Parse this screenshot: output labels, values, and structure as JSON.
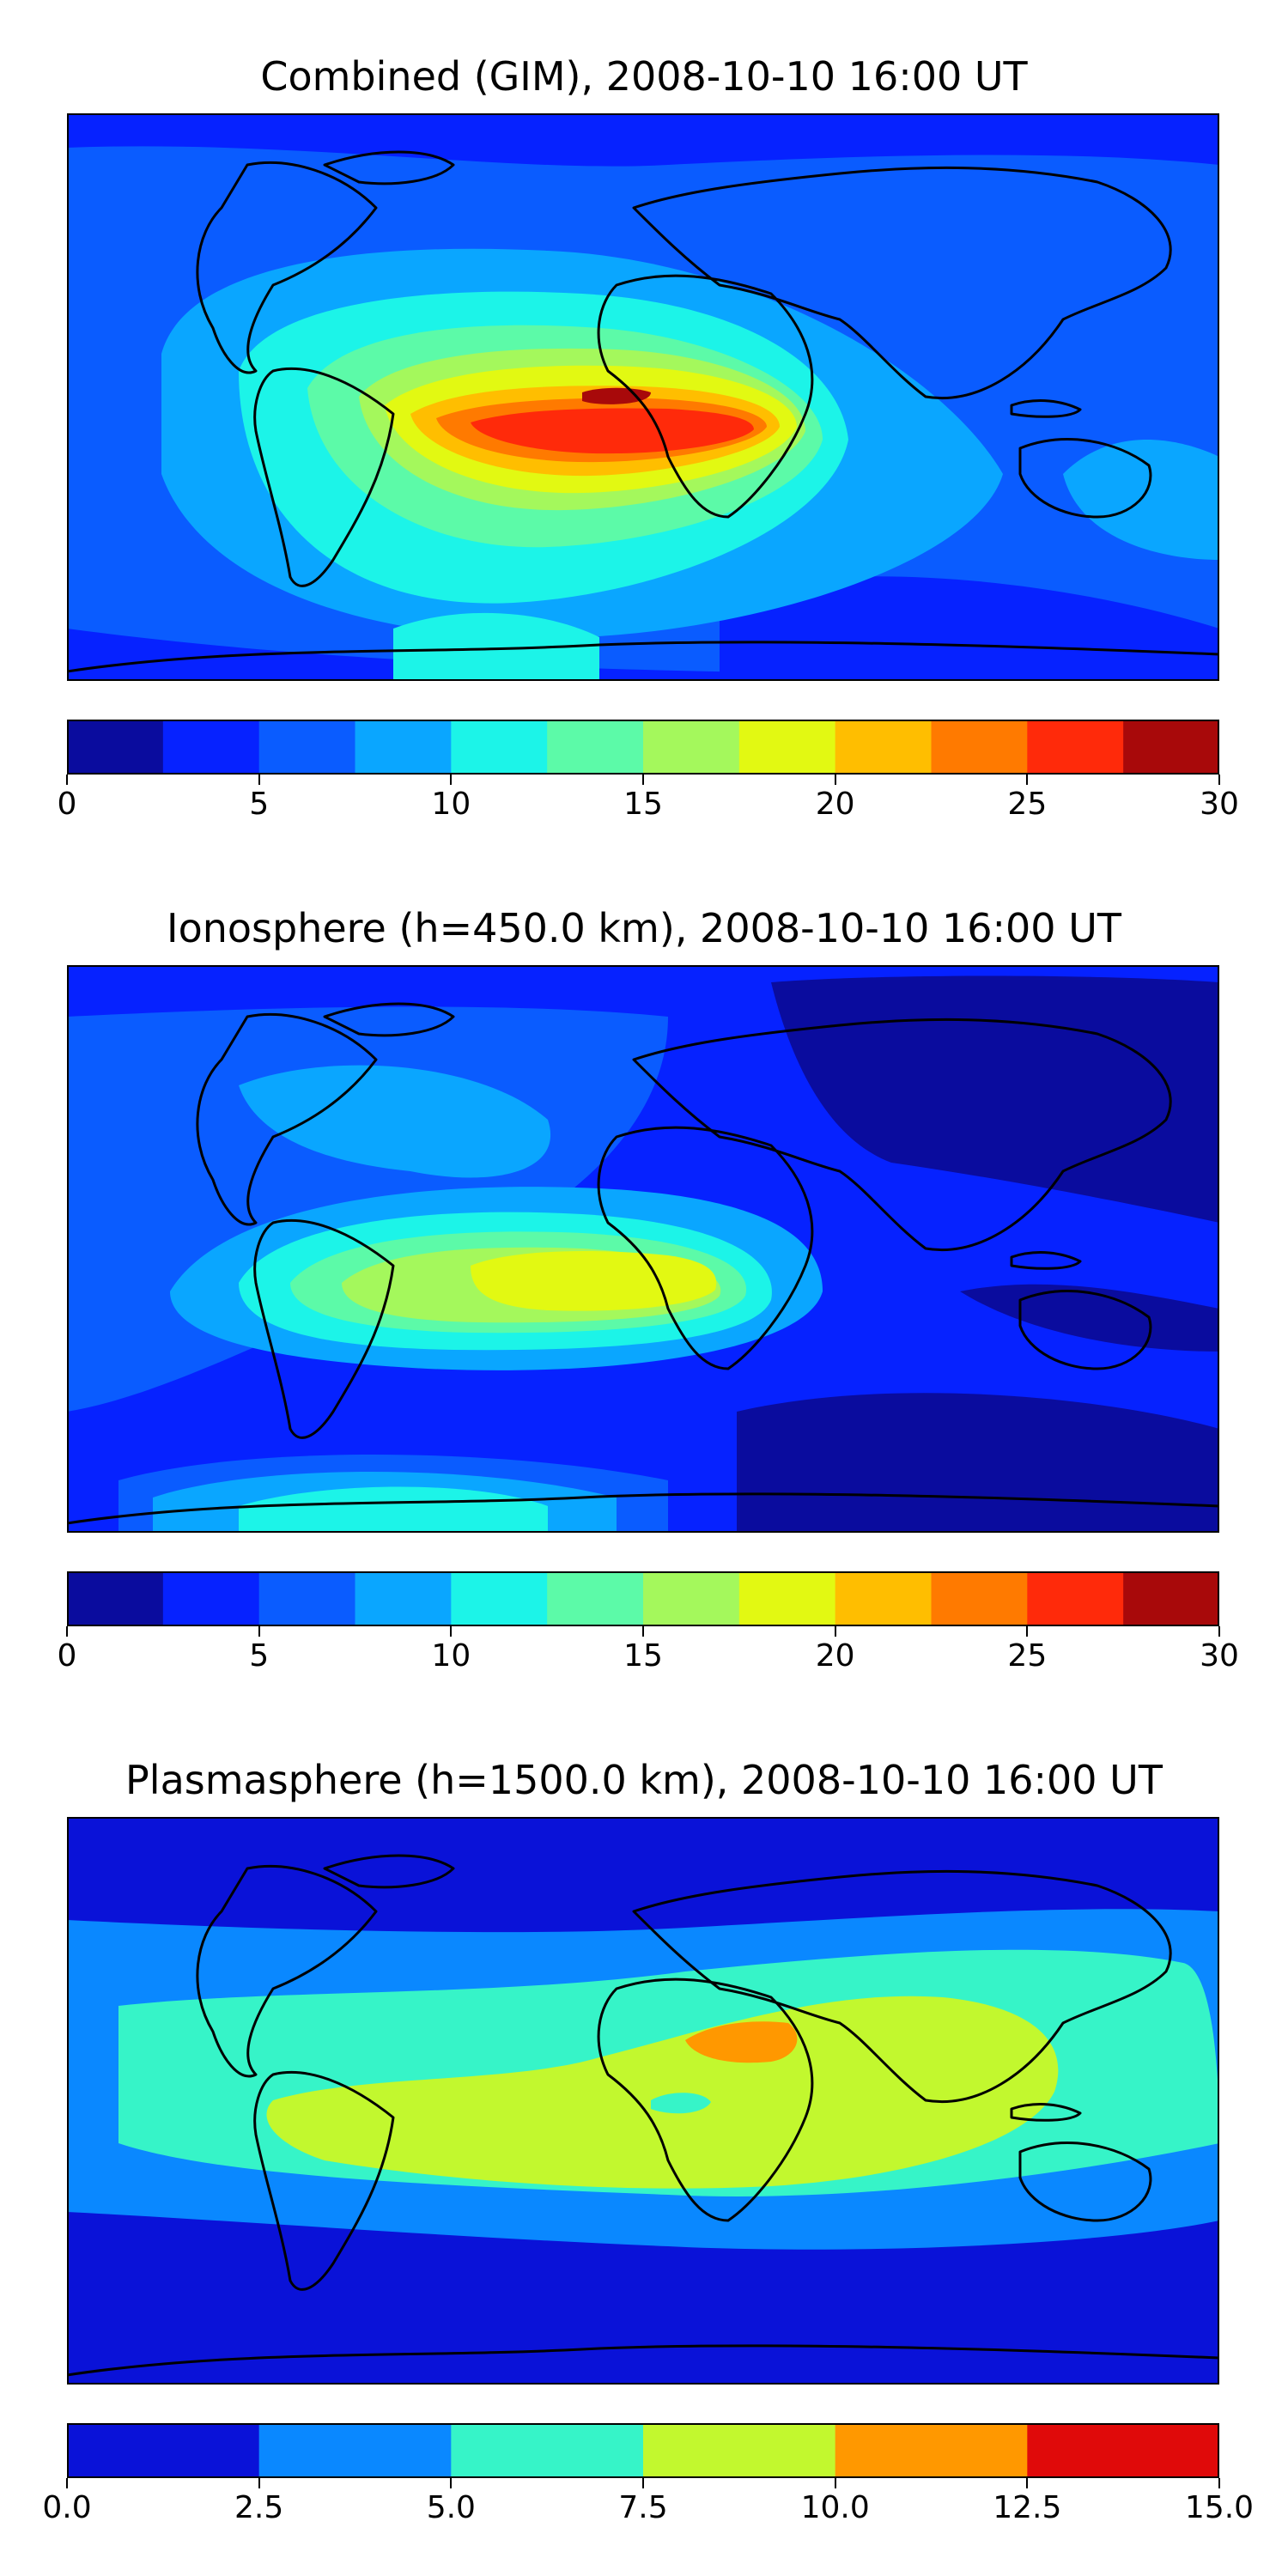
{
  "chart_data": [
    {
      "type": "heatmap",
      "title": "Combined (GIM), 2008-10-10 16:00 UT",
      "colorbar": {
        "min": 0,
        "max": 30,
        "levels": [
          0,
          2.5,
          5,
          7.5,
          10,
          12.5,
          15,
          17.5,
          20,
          22.5,
          25,
          27.5,
          30
        ],
        "colors": [
          "#0a0c9e",
          "#0622ff",
          "#0a5cff",
          "#0aa6ff",
          "#1cf4e8",
          "#5cfaa8",
          "#a4f85c",
          "#e2f912",
          "#ffbe00",
          "#ff7a00",
          "#ff2a0a",
          "#a8090a"
        ],
        "ticks": [
          0,
          5,
          10,
          15,
          20,
          25,
          30
        ],
        "tick_labels": [
          "0",
          "5",
          "10",
          "15",
          "20",
          "25",
          "30"
        ]
      },
      "background_level": 2
    },
    {
      "type": "heatmap",
      "title": "Ionosphere  (h=450.0 km), 2008-10-10 16:00 UT",
      "colorbar": {
        "min": 0,
        "max": 30,
        "levels": [
          0,
          2.5,
          5,
          7.5,
          10,
          12.5,
          15,
          17.5,
          20,
          22.5,
          25,
          27.5,
          30
        ],
        "colors": [
          "#0a0c9e",
          "#0622ff",
          "#0a5cff",
          "#0aa6ff",
          "#1cf4e8",
          "#5cfaa8",
          "#a4f85c",
          "#e2f912",
          "#ffbe00",
          "#ff7a00",
          "#ff2a0a",
          "#a8090a"
        ],
        "ticks": [
          0,
          5,
          10,
          15,
          20,
          25,
          30
        ],
        "tick_labels": [
          "0",
          "5",
          "10",
          "15",
          "20",
          "25",
          "30"
        ]
      },
      "background_level": 1
    },
    {
      "type": "heatmap",
      "title": "Plasmasphere (h=1500.0 km), 2008-10-10 16:00 UT",
      "colorbar": {
        "min": 0,
        "max": 15,
        "levels": [
          0,
          2.5,
          5,
          7.5,
          10,
          12.5,
          15
        ],
        "colors": [
          "#0a12d8",
          "#0a88ff",
          "#36f4c8",
          "#c2f82e",
          "#ff9800",
          "#e00a0a"
        ],
        "ticks": [
          0,
          2.5,
          5,
          7.5,
          10,
          12.5,
          15
        ],
        "tick_labels": [
          "0.0",
          "2.5",
          "5.0",
          "7.5",
          "10.0",
          "12.5",
          "15.0"
        ]
      },
      "background_level": 0
    }
  ]
}
